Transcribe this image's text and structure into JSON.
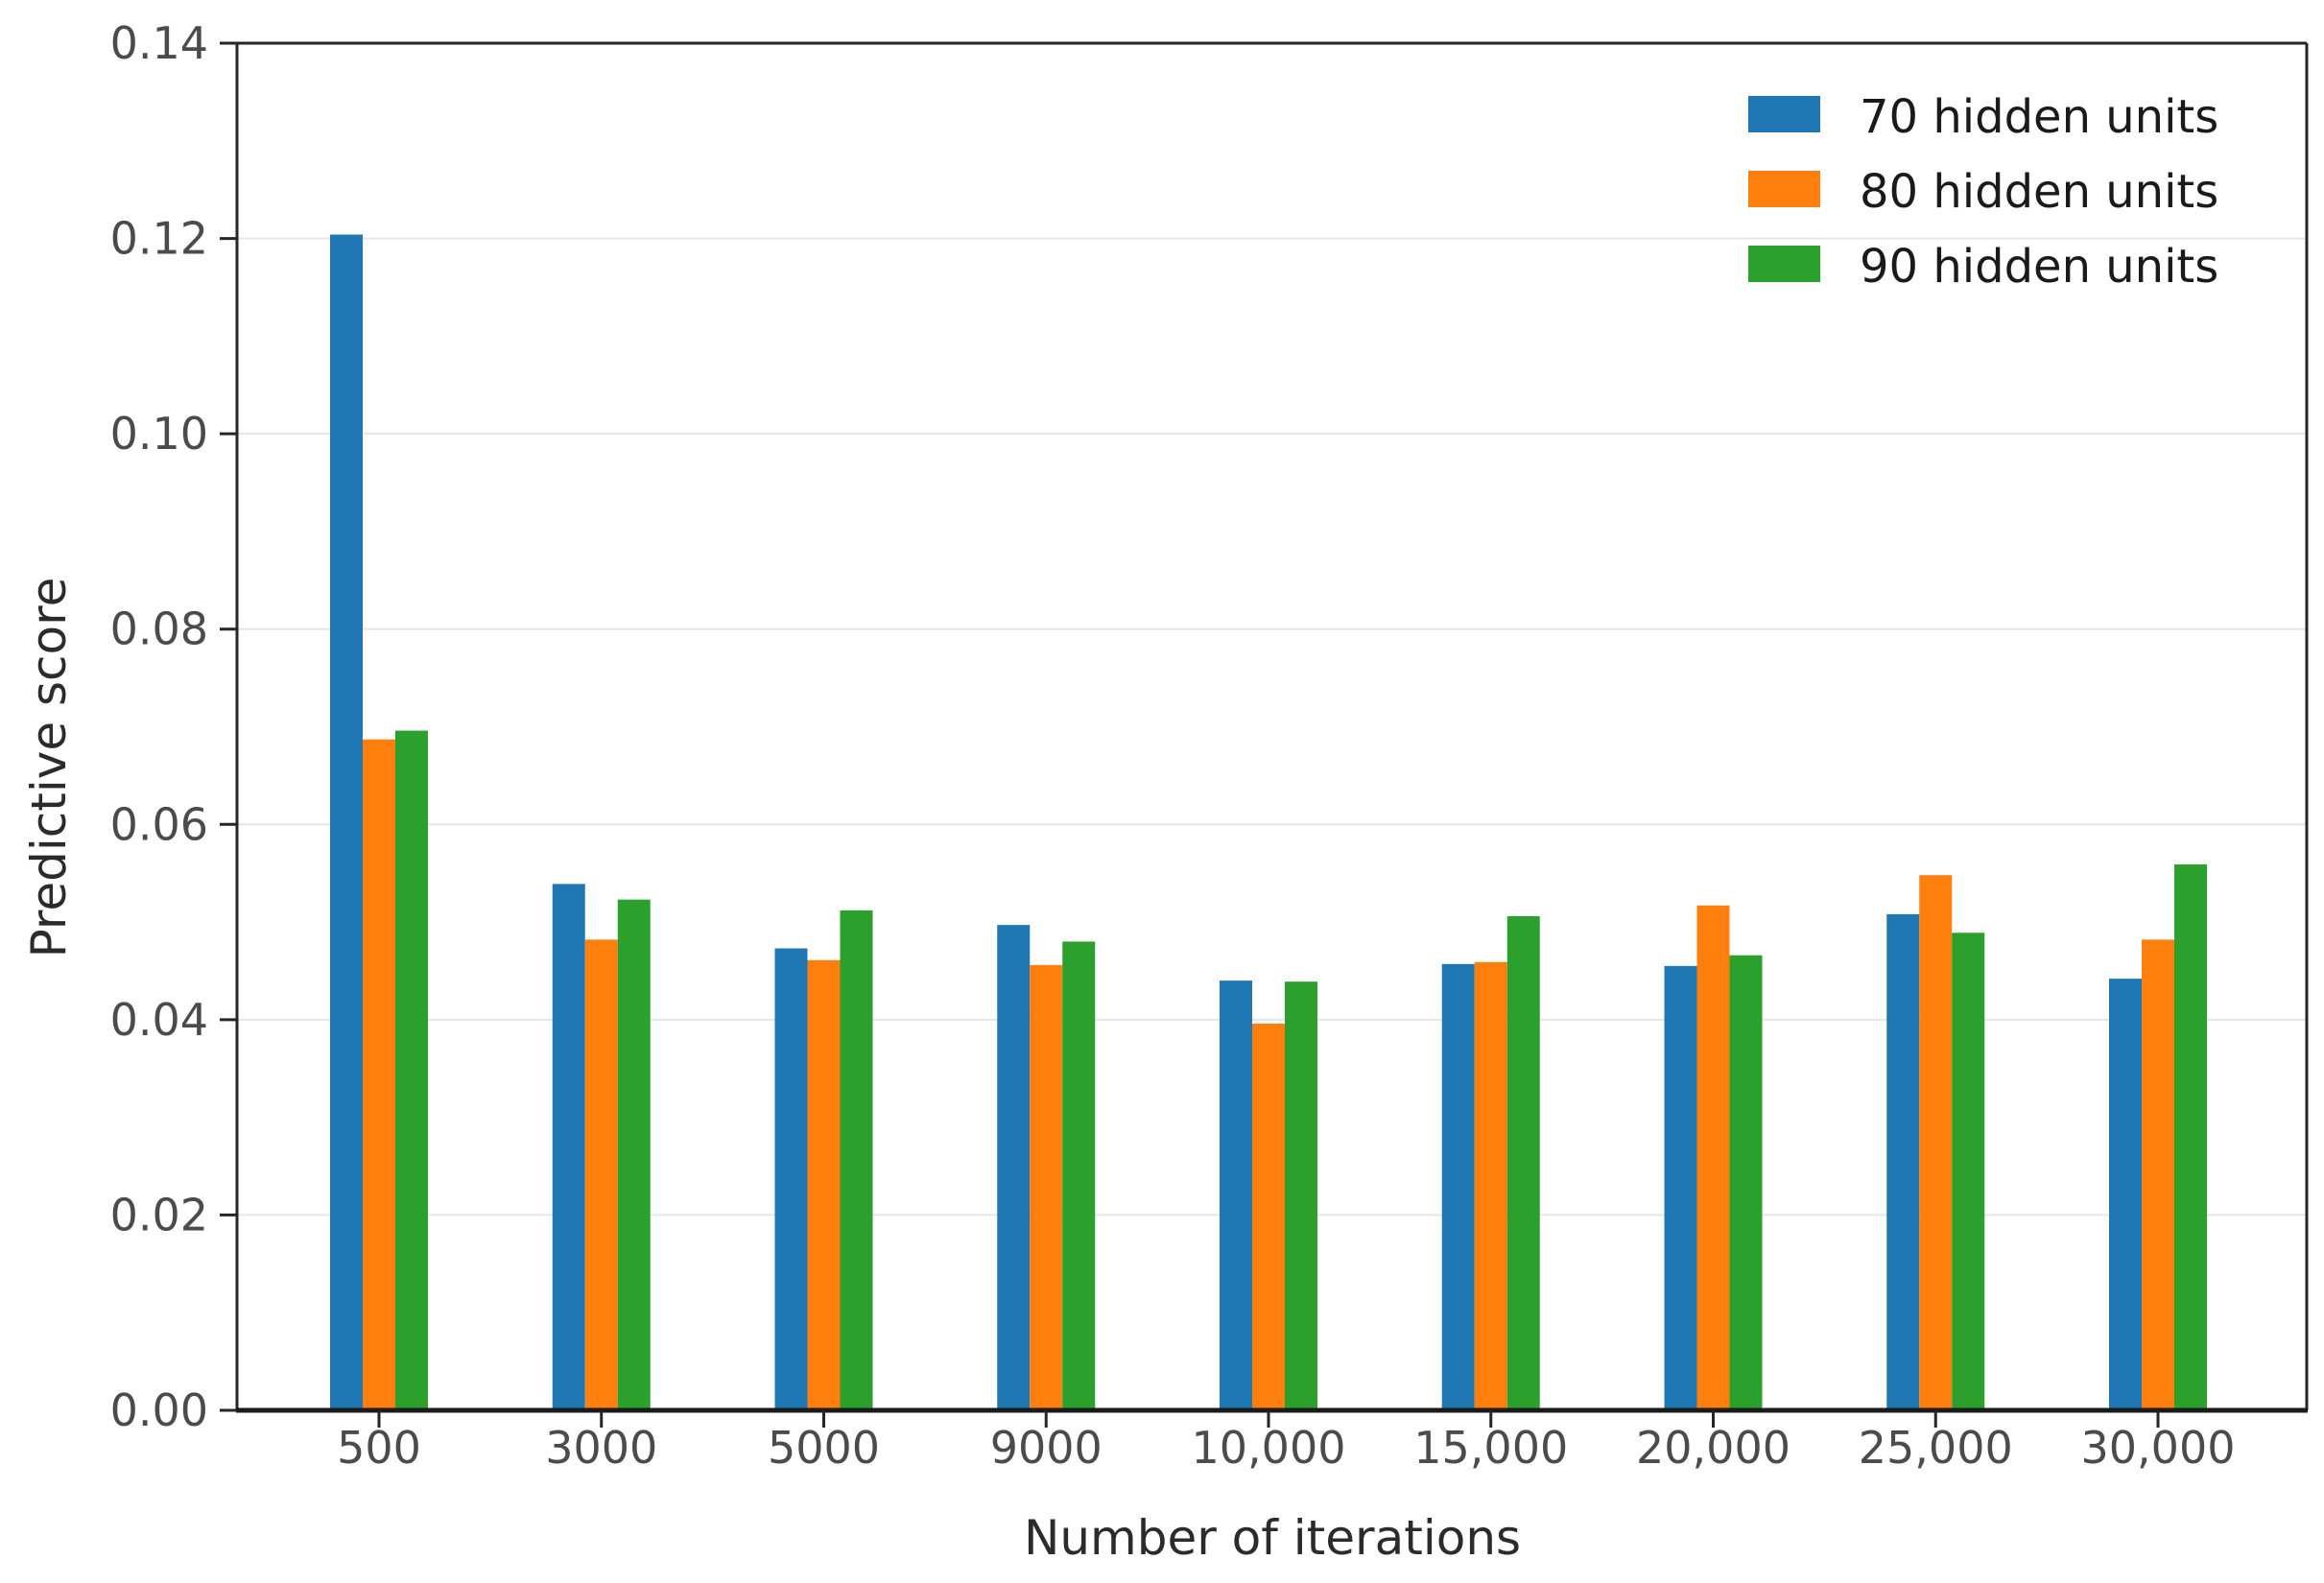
{
  "chart_data": {
    "type": "bar",
    "title": "",
    "xlabel": "Number of iterations",
    "ylabel": "Predictive score",
    "categories": [
      "500",
      "3000",
      "5000",
      "9000",
      "10,000",
      "15,000",
      "20,000",
      "25,000",
      "30,000"
    ],
    "series": [
      {
        "name": "70 hidden units",
        "color": "#1f77b4",
        "values": [
          0.1204,
          0.0539,
          0.0473,
          0.0497,
          0.044,
          0.0457,
          0.0455,
          0.0508,
          0.0442
        ]
      },
      {
        "name": "80 hidden units",
        "color": "#ff7f0e",
        "values": [
          0.0687,
          0.0482,
          0.0461,
          0.0456,
          0.0396,
          0.0459,
          0.0517,
          0.0548,
          0.0482
        ]
      },
      {
        "name": "90 hidden units",
        "color": "#2ca02c",
        "values": [
          0.0696,
          0.0523,
          0.0512,
          0.048,
          0.0439,
          0.0506,
          0.0466,
          0.0489,
          0.0559
        ]
      }
    ],
    "ylim": [
      0,
      0.14
    ],
    "ytick_step": 0.02,
    "ytick_labels": [
      "0.00",
      "0.02",
      "0.04",
      "0.06",
      "0.08",
      "0.10",
      "0.12",
      "0.14"
    ],
    "grid": true,
    "grid_color": "#e6e6e6",
    "spine_color": "#262626",
    "legend_position": "upper right"
  }
}
